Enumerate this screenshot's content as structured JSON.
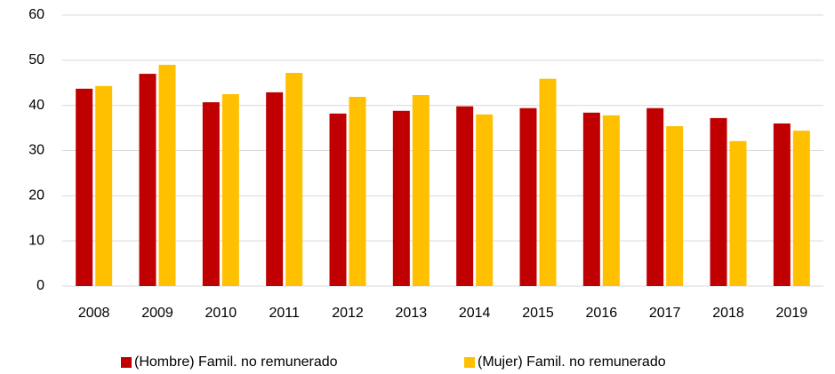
{
  "chart_data": {
    "type": "bar",
    "categories": [
      "2008",
      "2009",
      "2010",
      "2011",
      "2012",
      "2013",
      "2014",
      "2015",
      "2016",
      "2017",
      "2018",
      "2019"
    ],
    "series": [
      {
        "name": "(Hombre) Famil. no remunerado",
        "color": "#c00000",
        "values": [
          43.7,
          47.0,
          40.7,
          42.9,
          38.2,
          38.8,
          39.8,
          39.4,
          38.4,
          39.4,
          37.2,
          36.0
        ]
      },
      {
        "name": "(Mujer) Famil. no remunerado",
        "color": "#ffc000",
        "values": [
          44.3,
          49.0,
          42.5,
          47.2,
          41.9,
          42.3,
          38.0,
          45.9,
          37.8,
          35.4,
          32.1,
          34.4
        ]
      }
    ],
    "ylim": [
      0,
      60
    ],
    "yticks": [
      0,
      10,
      20,
      30,
      40,
      50,
      60
    ],
    "grid": true,
    "legend": "bottom"
  }
}
